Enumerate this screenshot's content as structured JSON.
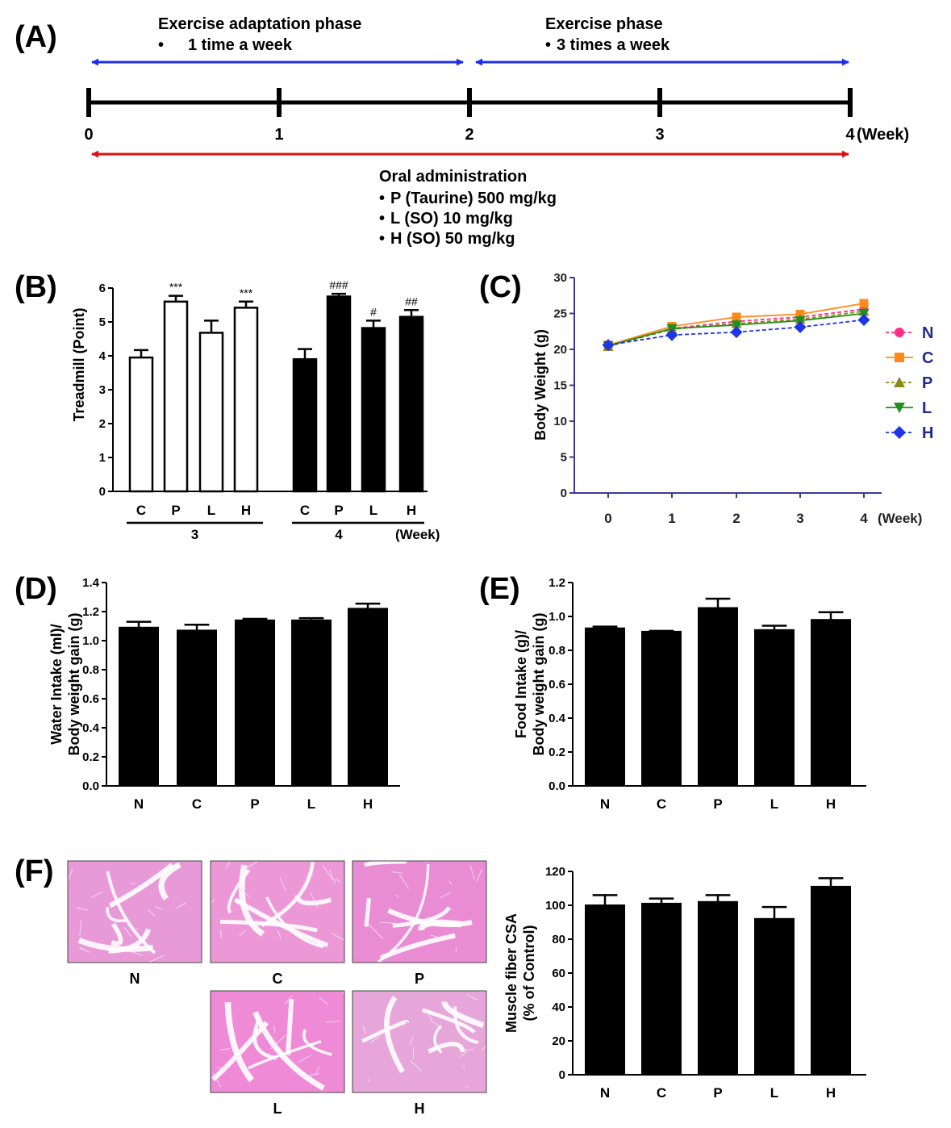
{
  "panel_labels": {
    "a": "(A)",
    "b": "(B)",
    "c": "(C)",
    "d": "(D)",
    "e": "(E)",
    "f": "(F)"
  },
  "colors": {
    "arrow_blue": "#1f2ee6",
    "arrow_red": "#dd1111",
    "axis_blue": "#3a3a9a",
    "bar_black": "#000000",
    "bar_white": "#ffffff"
  },
  "timeline": {
    "phase1_title": "Exercise adaptation phase",
    "phase1_detail": "1 time a week",
    "phase2_title": "Exercise phase",
    "phase2_detail": "3 times a week",
    "ticks": [
      "0",
      "1",
      "2",
      "3",
      "4"
    ],
    "unit": "(Week)",
    "oral_title": "Oral administration",
    "oral_items": [
      "P (Taurine) 500 mg/kg",
      "L (SO) 10 mg/kg",
      "H (SO) 50 mg/kg"
    ],
    "bullet": "•"
  },
  "micrographs": {
    "labels": [
      "N",
      "C",
      "P",
      "L",
      "H"
    ],
    "tints": [
      "#e89ad8",
      "#ec98d6",
      "#e98cd4",
      "#ef8ad6",
      "#e6a6da"
    ]
  },
  "chart_data": [
    {
      "id": "B",
      "type": "bar",
      "ylabel": "Treadmill (Point)",
      "ylim": [
        0,
        6
      ],
      "yticks": [
        "0",
        "1",
        "2",
        "3",
        "4",
        "5",
        "6"
      ],
      "groups": [
        {
          "name": "3",
          "fill": "white",
          "categories": [
            "C",
            "P",
            "L",
            "H"
          ],
          "values": [
            3.95,
            5.6,
            4.68,
            5.42
          ],
          "errors": [
            0.22,
            0.17,
            0.36,
            0.18
          ],
          "annotations": [
            "",
            "***",
            "",
            "***"
          ]
        },
        {
          "name": "4",
          "fill": "black",
          "categories": [
            "C",
            "P",
            "L",
            "H"
          ],
          "values": [
            3.9,
            5.75,
            4.82,
            5.15
          ],
          "errors": [
            0.3,
            0.08,
            0.22,
            0.2
          ],
          "annotations": [
            "",
            "###",
            "#",
            "##"
          ]
        }
      ],
      "xunit": "(Week)"
    },
    {
      "id": "C",
      "type": "line",
      "ylabel": "Body Weight (g)",
      "xlabel": "(Week)",
      "x": [
        "0",
        "1",
        "2",
        "3",
        "4"
      ],
      "ylim": [
        0,
        30
      ],
      "yticks": [
        "0",
        "5",
        "10",
        "15",
        "20",
        "25",
        "30"
      ],
      "series": [
        {
          "name": "N",
          "color": "#ff2d87",
          "marker": "circle",
          "dashed": true,
          "values": [
            20.5,
            22.9,
            23.9,
            24.5,
            25.6
          ]
        },
        {
          "name": "C",
          "color": "#ff8a1c",
          "marker": "square",
          "dashed": false,
          "values": [
            20.6,
            23.2,
            24.5,
            24.9,
            26.4
          ]
        },
        {
          "name": "P",
          "color": "#8a8a1a",
          "marker": "triangle",
          "dashed": true,
          "values": [
            20.4,
            22.8,
            23.6,
            24.2,
            25.3
          ]
        },
        {
          "name": "L",
          "color": "#1f8f1f",
          "marker": "triangle-down",
          "dashed": false,
          "values": [
            20.5,
            22.9,
            23.4,
            24.0,
            25.0
          ]
        },
        {
          "name": "H",
          "color": "#1f35e6",
          "marker": "diamond",
          "dashed": true,
          "values": [
            20.6,
            22.0,
            22.4,
            23.1,
            24.1
          ]
        }
      ]
    },
    {
      "id": "D",
      "type": "bar",
      "ylabel_line1": "Water Intake (ml)/",
      "ylabel_line2": "Body weight gain (g)",
      "categories": [
        "N",
        "C",
        "P",
        "L",
        "H"
      ],
      "values": [
        1.09,
        1.07,
        1.14,
        1.14,
        1.22
      ],
      "errors": [
        0.04,
        0.04,
        0.01,
        0.015,
        0.035
      ],
      "ylim": [
        0,
        1.4
      ],
      "yticks": [
        "0.0",
        "0.2",
        "0.4",
        "0.6",
        "0.8",
        "1.0",
        "1.2",
        "1.4"
      ]
    },
    {
      "id": "E",
      "type": "bar",
      "ylabel_line1": "Food Intake (g)/",
      "ylabel_line2": "Body weight gain (g)",
      "categories": [
        "N",
        "C",
        "P",
        "L",
        "H"
      ],
      "values": [
        0.93,
        0.91,
        1.05,
        0.92,
        0.98
      ],
      "errors": [
        0.01,
        0.005,
        0.055,
        0.025,
        0.045
      ],
      "ylim": [
        0,
        1.2
      ],
      "yticks": [
        "0.0",
        "0.2",
        "0.4",
        "0.6",
        "0.8",
        "1.0",
        "1.2"
      ]
    },
    {
      "id": "F",
      "type": "bar",
      "ylabel_line1": "Muscle fiber CSA",
      "ylabel_line2": "(% of Control)",
      "categories": [
        "N",
        "C",
        "P",
        "L",
        "H"
      ],
      "values": [
        100,
        101,
        102,
        92,
        111
      ],
      "errors": [
        6,
        3,
        4,
        7,
        5
      ],
      "ylim": [
        0,
        120
      ],
      "yticks": [
        "0",
        "20",
        "40",
        "60",
        "80",
        "100",
        "120"
      ]
    }
  ]
}
